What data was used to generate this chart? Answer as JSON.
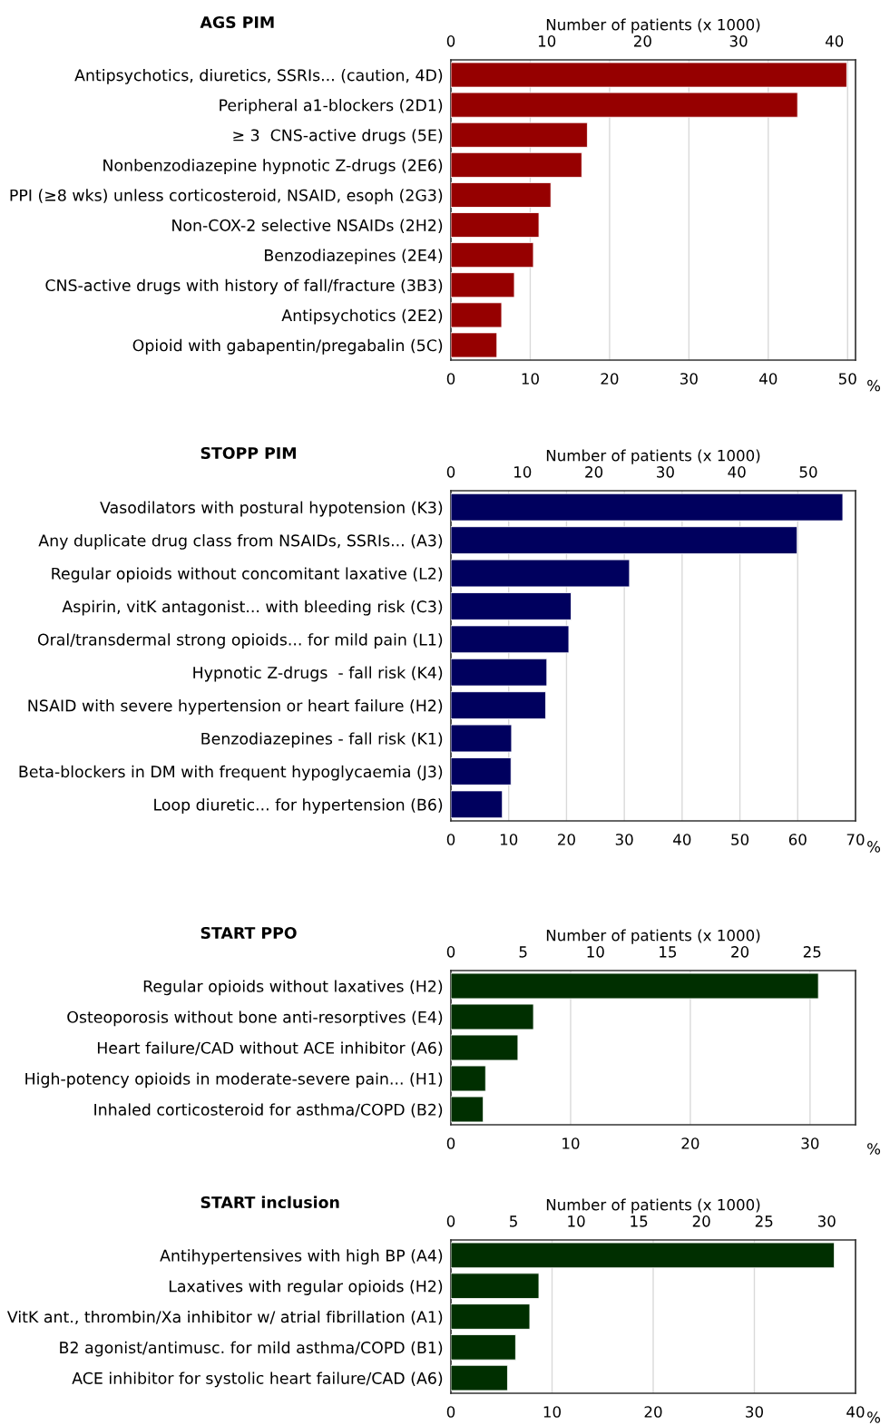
{
  "chart_data": [
    {
      "type": "bar",
      "orientation": "horizontal",
      "title": "AGS PIM",
      "xlabel": "%",
      "x2label": "Number of patients (x 1000)",
      "grid": "x",
      "categories": [
        "Antipsychotics, diuretics, SSRIs... (caution, 4D)",
        "Peripheral a1-blockers (2D1)",
        "≥ 3  CNS-active drugs (5E)",
        "Nonbenzodiazepine hypnotic Z-drugs (2E6)",
        "PPI (≥8 wks) unless corticosteroid, NSAID, esoph (2G3)",
        "Non-COX-2 selective NSAIDs (2H2)",
        "Benzodiazepines (2E4)",
        "CNS-active drugs with history of fall/fracture (3B3)",
        "Antipsychotics (2E2)",
        "Opioid with gabapentin/pregabalin (5C)"
      ],
      "values": [
        49.9,
        43.7,
        17.2,
        16.5,
        12.6,
        11.1,
        10.4,
        8.0,
        6.4,
        5.8
      ],
      "color": "#960000",
      "xlim": [
        0,
        51
      ],
      "xticks": [
        0,
        10,
        20,
        30,
        40,
        50
      ],
      "x2lim": [
        0,
        42.2
      ],
      "x2ticks": [
        0,
        10,
        20,
        30,
        40
      ]
    },
    {
      "type": "bar",
      "orientation": "horizontal",
      "title": "STOPP PIM",
      "xlabel": "%",
      "x2label": "Number of patients (x 1000)",
      "grid": "x",
      "categories": [
        "Vasodilators with postural hypotension (K3)",
        "Any duplicate drug class from NSAIDs, SSRIs... (A3)",
        "Regular opioids without concomitant laxative (L2)",
        "Aspirin, vitK antagonist... with bleeding risk (C3)",
        "Oral/transdermal strong opioids... for mild pain (L1)",
        "Hypnotic Z-drugs  - fall risk (K4)",
        "NSAID with severe hypertension or heart failure (H2)",
        "Benzodiazepines - fall risk (K1)",
        "Beta-blockers in DM with frequent hypoglycaemia (J3)",
        "Loop diuretic... for hypertension (B6)"
      ],
      "values": [
        67.8,
        59.9,
        30.9,
        20.8,
        20.4,
        16.6,
        16.4,
        10.5,
        10.4,
        8.9
      ],
      "color": "#00005e",
      "xlim": [
        0,
        70
      ],
      "xticks": [
        0,
        10,
        20,
        30,
        40,
        50,
        60,
        70
      ],
      "x2lim": [
        0,
        56.6
      ],
      "x2ticks": [
        0,
        10,
        20,
        30,
        40,
        50
      ]
    },
    {
      "type": "bar",
      "orientation": "horizontal",
      "title": "START PPO",
      "xlabel": "%",
      "x2label": "Number of patients (x 1000)",
      "grid": "x",
      "categories": [
        "Regular opioids without laxatives (H2)",
        "Osteoporosis without bone anti-resorptives (E4)",
        "Heart failure/CAD without ACE inhibitor (A6)",
        "High-potency opioids in moderate-severe pain... (H1)",
        "Inhaled corticosteroid for asthma/COPD (B2)"
      ],
      "values": [
        30.7,
        6.9,
        5.6,
        2.9,
        2.7
      ],
      "color": "#002f00",
      "xlim": [
        0,
        33.8
      ],
      "xticks": [
        0,
        10,
        20,
        30
      ],
      "x2lim": [
        0,
        28.0
      ],
      "x2ticks": [
        0,
        5,
        10,
        15,
        20,
        25
      ]
    },
    {
      "type": "bar",
      "orientation": "horizontal",
      "title": "START inclusion",
      "xlabel": "%",
      "x2label": "Number of patients (x 1000)",
      "grid": "x",
      "categories": [
        "Antihypertensives with high BP (A4)",
        "Laxatives with regular opioids (H2)",
        "VitK ant., thrombin/Xa inhibitor w/ atrial fibrillation (A1)",
        "B2 agonist/antimusc. for mild asthma/COPD (B1)",
        "ACE inhibitor for systolic heart failure/CAD (A6)"
      ],
      "values": [
        37.9,
        8.7,
        7.8,
        6.4,
        5.6
      ],
      "color": "#002f00",
      "xlim": [
        0,
        40
      ],
      "xticks": [
        0,
        10,
        20,
        30,
        40
      ],
      "x2lim": [
        0,
        32.3
      ],
      "x2ticks": [
        0,
        5,
        10,
        15,
        20,
        25,
        30
      ]
    }
  ]
}
